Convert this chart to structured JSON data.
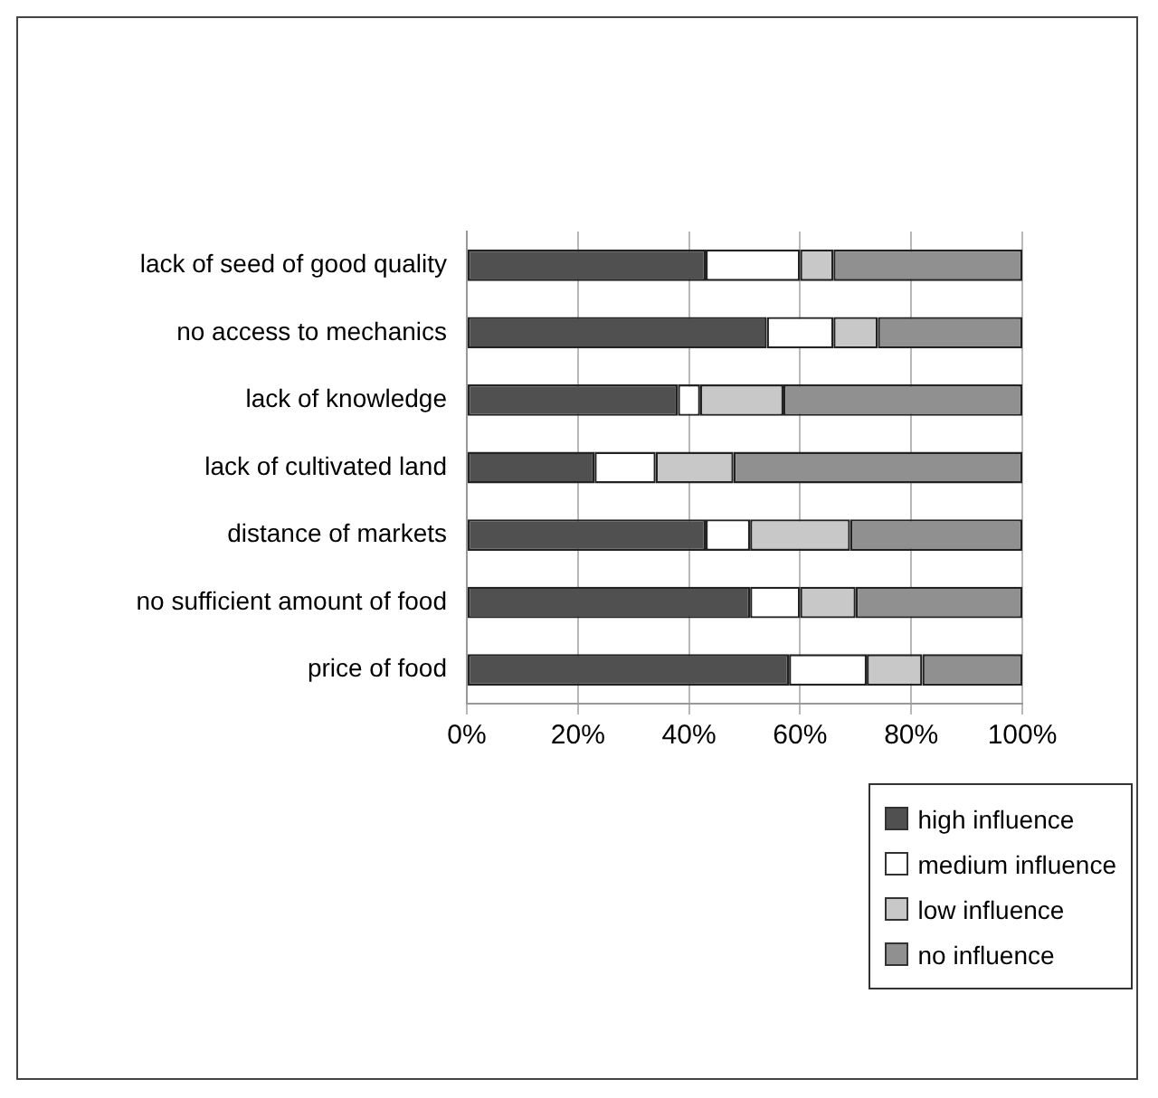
{
  "chart_data": {
    "type": "bar",
    "orientation": "horizontal",
    "stacked": true,
    "categories": [
      "lack of seed of good quality",
      "no access to mechanics",
      "lack of knowledge",
      "lack of cultivated land",
      "distance of markets",
      "no sufficient amount of food",
      "price of food"
    ],
    "series": [
      {
        "name": "high influence",
        "color": "#505050",
        "values": [
          43,
          54,
          38,
          23,
          43,
          51,
          58
        ]
      },
      {
        "name": "medium influence",
        "color": "#ffffff",
        "values": [
          17,
          12,
          4,
          11,
          8,
          9,
          14
        ]
      },
      {
        "name": "low influence",
        "color": "#c8c8c8",
        "values": [
          6,
          8,
          15,
          14,
          18,
          10,
          10
        ]
      },
      {
        "name": "no influence",
        "color": "#909090",
        "values": [
          34,
          26,
          43,
          52,
          31,
          30,
          18
        ]
      }
    ],
    "xlim": [
      0,
      100
    ],
    "xticks": [
      {
        "value": 0,
        "label": "0%"
      },
      {
        "value": 20,
        "label": "20%"
      },
      {
        "value": 40,
        "label": "40%"
      },
      {
        "value": 60,
        "label": "60%"
      },
      {
        "value": 80,
        "label": "80%"
      },
      {
        "value": 100,
        "label": "100%"
      }
    ],
    "grid": "x",
    "legend": "bottom right"
  }
}
